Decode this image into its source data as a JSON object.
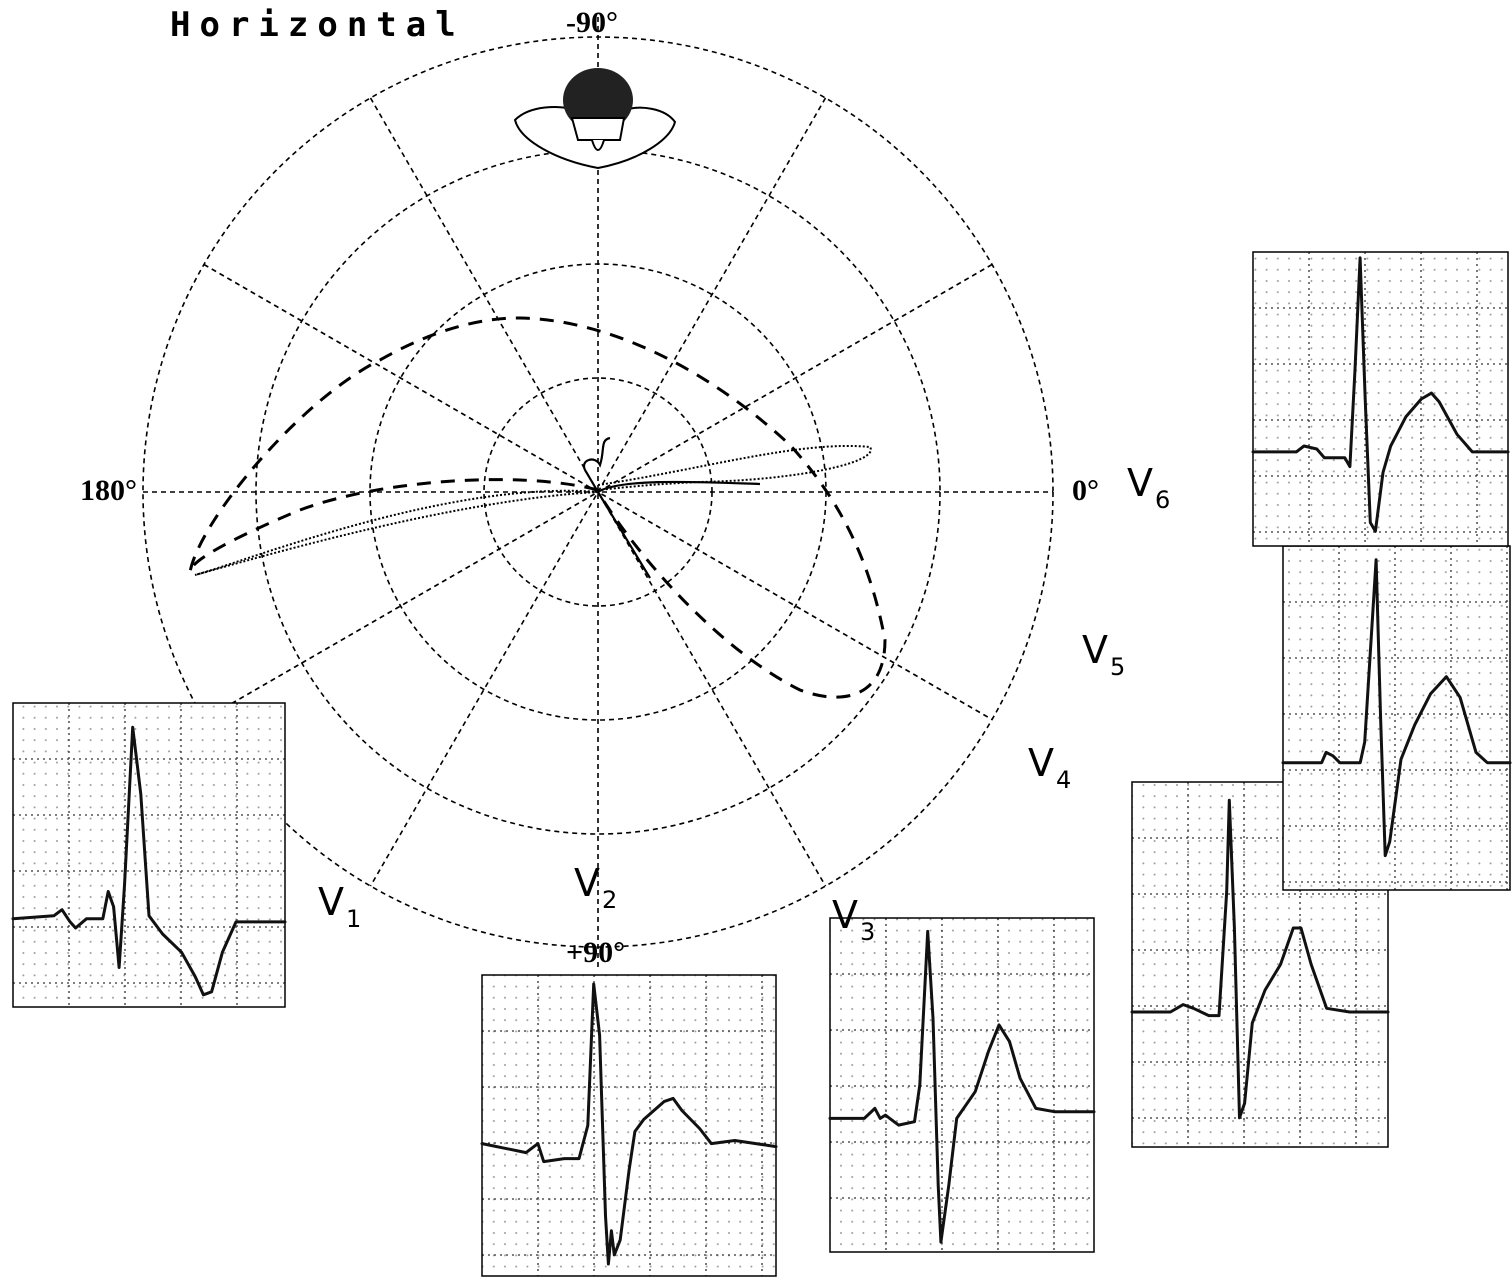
{
  "title": "Horizontal",
  "axis_labels": {
    "top": "-90°",
    "left": "180°",
    "right": "0°",
    "bottom": "+90°"
  },
  "leads": [
    {
      "letter": "V",
      "subscript": "1"
    },
    {
      "letter": "V",
      "subscript": "2"
    },
    {
      "letter": "V",
      "subscript": "3"
    },
    {
      "letter": "V",
      "subscript": "4"
    },
    {
      "letter": "V",
      "subscript": "5"
    },
    {
      "letter": "V",
      "subscript": "6"
    }
  ]
}
